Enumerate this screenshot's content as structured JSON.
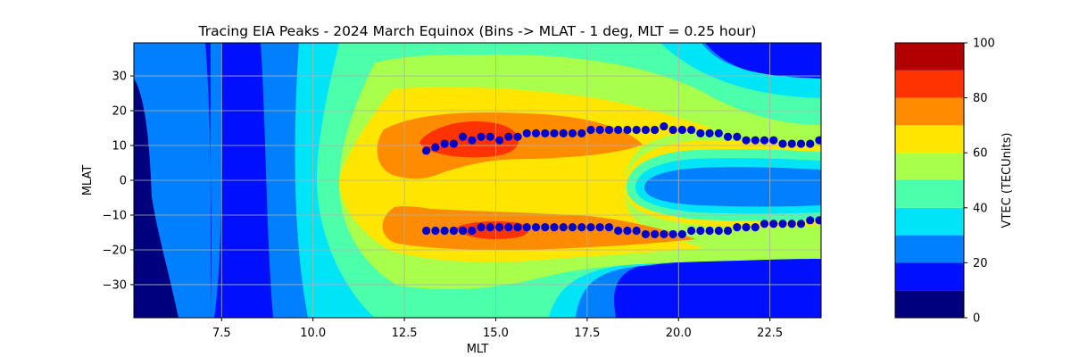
{
  "chart_data": {
    "type": "heatmap",
    "title": "Tracing EIA Peaks - 2024 March Equinox (Bins -> MLAT - 1 deg, MLT = 0.25 hour)",
    "xlabel": "MLT",
    "ylabel": "MLAT",
    "xlim": [
      5.1,
      23.9
    ],
    "ylim": [
      -39.5,
      39.5
    ],
    "xticks": [
      "7.5",
      "10.0",
      "12.5",
      "15.0",
      "17.5",
      "20.0",
      "22.5"
    ],
    "xtick_values": [
      7.5,
      10.0,
      12.5,
      15.0,
      17.5,
      20.0,
      22.5
    ],
    "yticks": [
      "30",
      "20",
      "10",
      "0",
      "−10",
      "−20",
      "−30"
    ],
    "ytick_values": [
      30,
      20,
      10,
      0,
      -10,
      -20,
      -30
    ],
    "grid": true,
    "colorbar": {
      "label": "VTEC (TECUnits)",
      "min": 0,
      "max": 100,
      "levels": [
        0,
        10,
        20,
        30,
        40,
        50,
        60,
        70,
        80,
        90,
        100
      ],
      "tick_labels": [
        "100",
        "80",
        "60",
        "40",
        "20",
        "0"
      ],
      "tick_values": [
        100,
        80,
        60,
        40,
        20,
        0
      ],
      "colors": [
        "#00007f",
        "#0010ff",
        "#0080ff",
        "#00e4f7",
        "#4cffaa",
        "#a8ff4c",
        "#ffe600",
        "#ff8c00",
        "#ff3300",
        "#b20000"
      ]
    },
    "series": [
      {
        "marker_color": "#0000cc",
        "x": [
          13.1,
          13.35,
          13.6,
          13.85,
          14.1,
          14.35,
          14.6,
          14.85,
          15.1,
          15.35,
          15.6,
          15.85,
          16.1,
          16.35,
          16.6,
          16.85,
          17.1,
          17.35,
          17.6,
          17.85,
          18.1,
          18.35,
          18.6,
          18.85,
          19.1,
          19.35,
          19.6,
          19.85,
          20.1,
          20.35,
          20.6,
          20.85,
          21.1,
          21.35,
          21.6,
          21.85,
          22.1,
          22.35,
          22.6,
          22.85,
          23.1,
          23.35,
          23.6,
          23.85
        ],
        "y": [
          8.5,
          9.5,
          10.5,
          10.5,
          12.5,
          11.5,
          12.5,
          12.5,
          11.5,
          12.5,
          12.5,
          13.5,
          13.5,
          13.5,
          13.5,
          13.5,
          13.5,
          13.5,
          14.5,
          14.5,
          14.5,
          14.5,
          14.5,
          14.5,
          14.5,
          14.5,
          15.5,
          14.5,
          14.5,
          14.5,
          13.5,
          13.5,
          13.5,
          12.5,
          12.5,
          11.5,
          11.5,
          11.5,
          11.5,
          10.5,
          10.5,
          10.5,
          10.5,
          11.5
        ]
      },
      {
        "marker_color": "#0000cc",
        "x": [
          13.1,
          13.35,
          13.6,
          13.85,
          14.1,
          14.35,
          14.6,
          14.85,
          15.1,
          15.35,
          15.6,
          15.85,
          16.1,
          16.35,
          16.6,
          16.85,
          17.1,
          17.35,
          17.6,
          17.85,
          18.1,
          18.35,
          18.6,
          18.85,
          19.1,
          19.35,
          19.6,
          19.85,
          20.1,
          20.35,
          20.6,
          20.85,
          21.1,
          21.35,
          21.6,
          21.85,
          22.1,
          22.35,
          22.6,
          22.85,
          23.1,
          23.35,
          23.6,
          23.85
        ],
        "y": [
          -14.5,
          -14.5,
          -14.5,
          -14.5,
          -14.5,
          -14.5,
          -13.5,
          -13.5,
          -13.5,
          -13.5,
          -13.5,
          -13.5,
          -13.5,
          -13.5,
          -13.5,
          -13.5,
          -13.5,
          -13.5,
          -13.5,
          -13.5,
          -13.5,
          -14.5,
          -14.5,
          -14.5,
          -15.5,
          -15.5,
          -15.5,
          -15.5,
          -15.5,
          -14.5,
          -14.5,
          -14.5,
          -14.5,
          -14.5,
          -13.5,
          -13.5,
          -13.5,
          -12.5,
          -12.5,
          -12.5,
          -12.5,
          -12.5,
          -11.5,
          -11.5
        ]
      }
    ]
  }
}
